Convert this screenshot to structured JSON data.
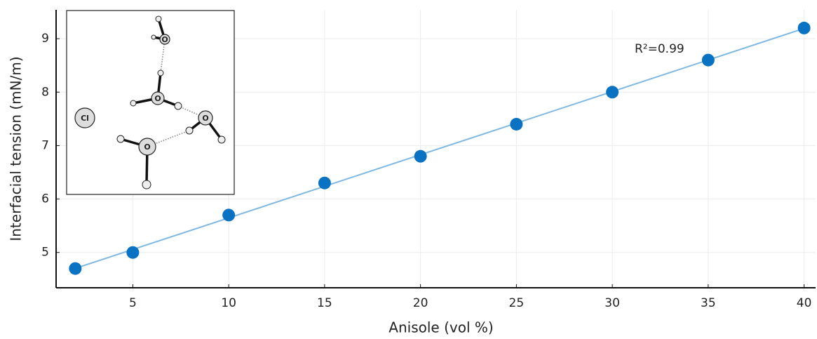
{
  "chart_data": {
    "type": "scatter",
    "x_label": "Anisole (vol %)",
    "y_label": "Interfacial tension (mN/m)",
    "annotations": [
      "R²=0.99"
    ],
    "inset_atoms": [
      "O",
      "O",
      "O",
      "O",
      "Cl"
    ],
    "x": [
      2,
      5,
      10,
      15,
      20,
      25,
      30,
      35,
      40
    ],
    "series": [
      {
        "color": "#0a72c2",
        "values": [
          4.7,
          5.0,
          5.7,
          6.3,
          6.8,
          7.4,
          8.0,
          8.6,
          9.2
        ]
      }
    ],
    "fit_color": "#7fb8e0",
    "xlim": [
      1,
      40.6
    ],
    "ylim": [
      4.34,
      9.54
    ],
    "xticks": [
      5,
      10,
      15,
      20,
      25,
      30,
      35,
      40
    ],
    "yticks": [
      5,
      6,
      7,
      8,
      9
    ],
    "grid": true
  }
}
